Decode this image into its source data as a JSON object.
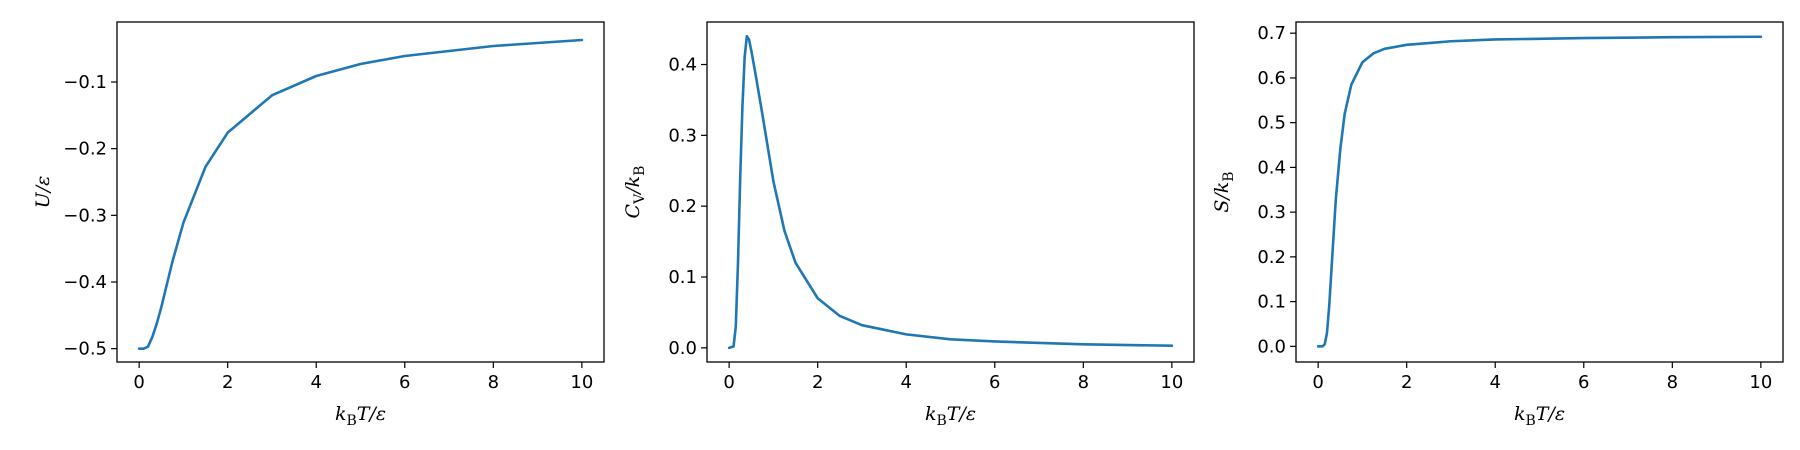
{
  "chart_data": [
    {
      "type": "line",
      "id": "internal-energy",
      "ylabel": {
        "main": "U/ε",
        "sub": ""
      },
      "xlabel": {
        "pre": "k",
        "sub": "B",
        "post": "T/ε"
      },
      "xlim": [
        -0.5,
        10.5
      ],
      "ylim": [
        -0.52,
        -0.01
      ],
      "xticks": [
        0,
        2,
        4,
        6,
        8,
        10
      ],
      "yticks": [
        -0.5,
        -0.4,
        -0.3,
        -0.2,
        -0.1
      ],
      "ytick_labels": [
        "−0.5",
        "−0.4",
        "−0.3",
        "−0.2",
        "−0.1"
      ],
      "grid": false,
      "color": "#1f77b4",
      "x": [
        0,
        0.1,
        0.2,
        0.3,
        0.4,
        0.5,
        0.75,
        1.0,
        1.5,
        2.0,
        3.0,
        4.0,
        5.0,
        6.0,
        8.0,
        10.0
      ],
      "y": [
        -0.5,
        -0.5,
        -0.497,
        -0.482,
        -0.462,
        -0.438,
        -0.37,
        -0.311,
        -0.227,
        -0.176,
        -0.12,
        -0.091,
        -0.073,
        -0.061,
        -0.046,
        -0.037
      ]
    },
    {
      "type": "line",
      "id": "heat-capacity",
      "ylabel": {
        "main": "C",
        "sub": "V",
        "post": "/k",
        "sub2": "B"
      },
      "xlabel": {
        "pre": "k",
        "sub": "B",
        "post": "T/ε"
      },
      "xlim": [
        -0.5,
        10.5
      ],
      "ylim": [
        -0.02,
        0.46
      ],
      "xticks": [
        0,
        2,
        4,
        6,
        8,
        10
      ],
      "yticks": [
        0.0,
        0.1,
        0.2,
        0.3,
        0.4
      ],
      "ytick_labels": [
        "0.0",
        "0.1",
        "0.2",
        "0.3",
        "0.4"
      ],
      "grid": false,
      "color": "#1f77b4",
      "x": [
        0,
        0.1,
        0.15,
        0.2,
        0.25,
        0.3,
        0.35,
        0.4,
        0.45,
        0.5,
        0.6,
        0.75,
        1.0,
        1.25,
        1.5,
        2.0,
        2.5,
        3.0,
        4.0,
        5.0,
        6.0,
        8.0,
        10.0
      ],
      "y": [
        0,
        0.002,
        0.03,
        0.12,
        0.24,
        0.34,
        0.41,
        0.44,
        0.435,
        0.42,
        0.385,
        0.33,
        0.235,
        0.165,
        0.12,
        0.07,
        0.045,
        0.032,
        0.019,
        0.012,
        0.009,
        0.005,
        0.003
      ]
    },
    {
      "type": "line",
      "id": "entropy",
      "ylabel": {
        "main": "S/k",
        "sub": "B"
      },
      "xlabel": {
        "pre": "k",
        "sub": "B",
        "post": "T/ε"
      },
      "xlim": [
        -0.5,
        10.5
      ],
      "ylim": [
        -0.035,
        0.725
      ],
      "xticks": [
        0,
        2,
        4,
        6,
        8,
        10
      ],
      "yticks": [
        0.0,
        0.1,
        0.2,
        0.3,
        0.4,
        0.5,
        0.6,
        0.7
      ],
      "ytick_labels": [
        "0.0",
        "0.1",
        "0.2",
        "0.3",
        "0.4",
        "0.5",
        "0.6",
        "0.7"
      ],
      "grid": false,
      "color": "#1f77b4",
      "x": [
        0,
        0.1,
        0.15,
        0.2,
        0.25,
        0.3,
        0.4,
        0.5,
        0.6,
        0.75,
        1.0,
        1.25,
        1.5,
        2.0,
        2.5,
        3.0,
        4.0,
        6.0,
        8.0,
        10.0
      ],
      "y": [
        0,
        0,
        0.005,
        0.03,
        0.09,
        0.17,
        0.33,
        0.44,
        0.52,
        0.585,
        0.635,
        0.655,
        0.665,
        0.674,
        0.678,
        0.682,
        0.686,
        0.689,
        0.691,
        0.692
      ]
    }
  ]
}
